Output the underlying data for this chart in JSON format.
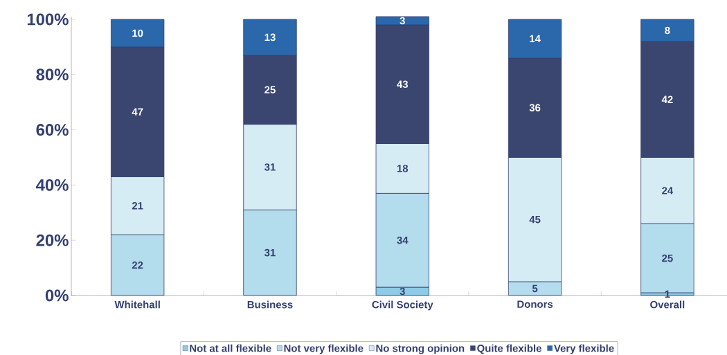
{
  "chart_data": {
    "type": "bar",
    "stacked": true,
    "categories": [
      "Whitehall",
      "Business",
      "Civil Society",
      "Donors",
      "Overall"
    ],
    "series": [
      {
        "name": "Not at all flexible",
        "color": "#8ecbe6",
        "values": [
          null,
          null,
          3,
          null,
          1
        ]
      },
      {
        "name": "Not very flexible",
        "color": "#b3dced",
        "values": [
          22,
          31,
          34,
          5,
          25
        ]
      },
      {
        "name": "No strong opinion",
        "color": "#d6ecf5",
        "values": [
          21,
          31,
          18,
          45,
          24
        ]
      },
      {
        "name": "Quite flexible",
        "color": "#3b4670",
        "values": [
          47,
          25,
          43,
          36,
          42
        ]
      },
      {
        "name": "Very flexible",
        "color": "#2a68ab",
        "values": [
          10,
          13,
          3,
          14,
          8
        ]
      }
    ],
    "ylim": [
      0,
      101
    ],
    "yticks": [
      {
        "value": 0,
        "label": "0%"
      },
      {
        "value": 20,
        "label": "20%"
      },
      {
        "value": 40,
        "label": "40%"
      },
      {
        "value": 60,
        "label": "60%"
      },
      {
        "value": 80,
        "label": "80%"
      },
      {
        "value": 100,
        "label": "100%"
      }
    ],
    "data_labels": true,
    "legend": "bottom",
    "grid": false
  }
}
